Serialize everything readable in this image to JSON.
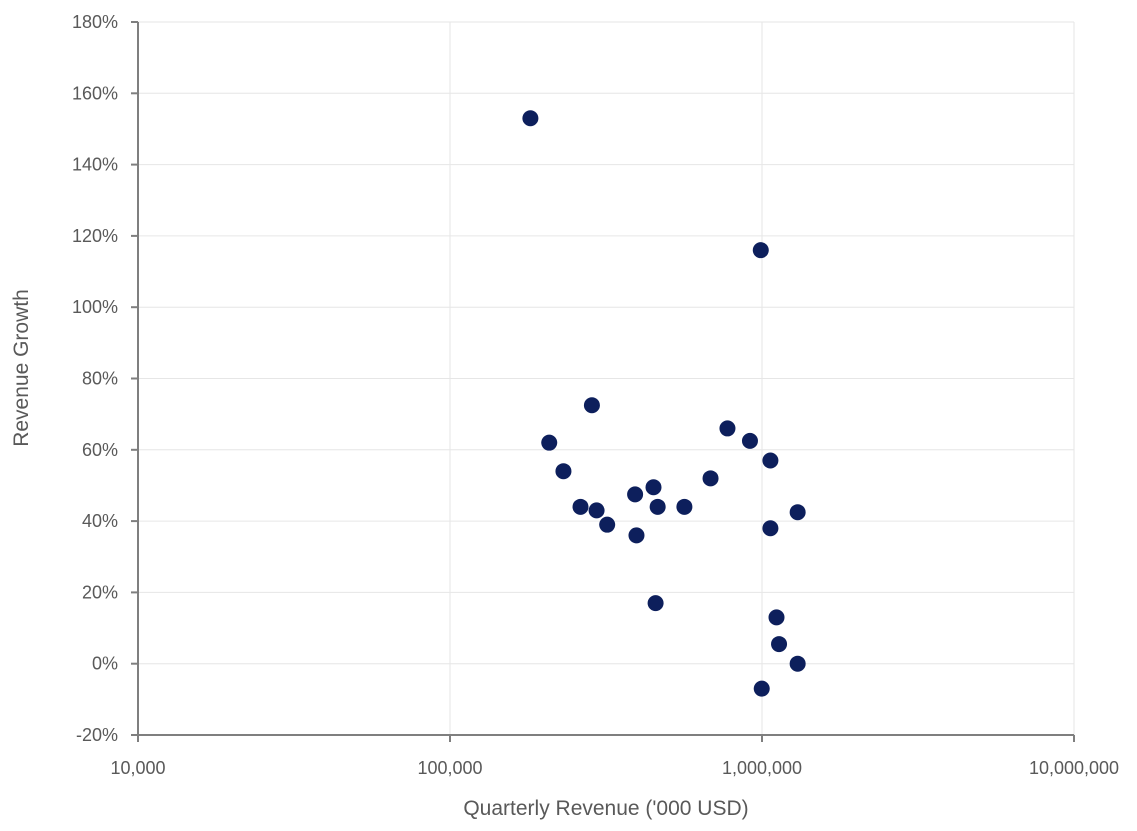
{
  "chart_data": {
    "type": "scatter",
    "title": "",
    "xlabel": "Quarterly Revenue ('000 USD)",
    "ylabel": "Revenue Growth",
    "x_scale": "log",
    "xlim": [
      10000,
      10000000
    ],
    "ylim": [
      -20,
      180
    ],
    "x_ticks": [
      10000,
      100000,
      1000000,
      10000000
    ],
    "x_tick_labels": [
      "10,000",
      "100,000",
      "1,000,000",
      "10,000,000"
    ],
    "y_ticks": [
      -20,
      0,
      20,
      40,
      60,
      80,
      100,
      120,
      140,
      160,
      180
    ],
    "y_tick_labels": [
      "-20%",
      "0%",
      "20%",
      "40%",
      "60%",
      "80%",
      "100%",
      "120%",
      "140%",
      "160%",
      "180%"
    ],
    "grid": true,
    "legend": "none",
    "marker_color": "#0d1f5c",
    "points": [
      {
        "x": 181000,
        "y": 153
      },
      {
        "x": 208000,
        "y": 62
      },
      {
        "x": 231000,
        "y": 54
      },
      {
        "x": 262000,
        "y": 44
      },
      {
        "x": 285000,
        "y": 72.5
      },
      {
        "x": 295000,
        "y": 43
      },
      {
        "x": 319000,
        "y": 39
      },
      {
        "x": 392000,
        "y": 47.5
      },
      {
        "x": 396000,
        "y": 36
      },
      {
        "x": 449000,
        "y": 49.5
      },
      {
        "x": 456000,
        "y": 17
      },
      {
        "x": 463000,
        "y": 44
      },
      {
        "x": 564000,
        "y": 44
      },
      {
        "x": 684000,
        "y": 52
      },
      {
        "x": 775000,
        "y": 66
      },
      {
        "x": 915000,
        "y": 62.5
      },
      {
        "x": 991000,
        "y": 116
      },
      {
        "x": 998000,
        "y": -7
      },
      {
        "x": 1064000,
        "y": 57
      },
      {
        "x": 1064000,
        "y": 38
      },
      {
        "x": 1113000,
        "y": 13
      },
      {
        "x": 1134000,
        "y": 5.5
      },
      {
        "x": 1301000,
        "y": 42.5
      },
      {
        "x": 1301000,
        "y": 0
      }
    ]
  }
}
